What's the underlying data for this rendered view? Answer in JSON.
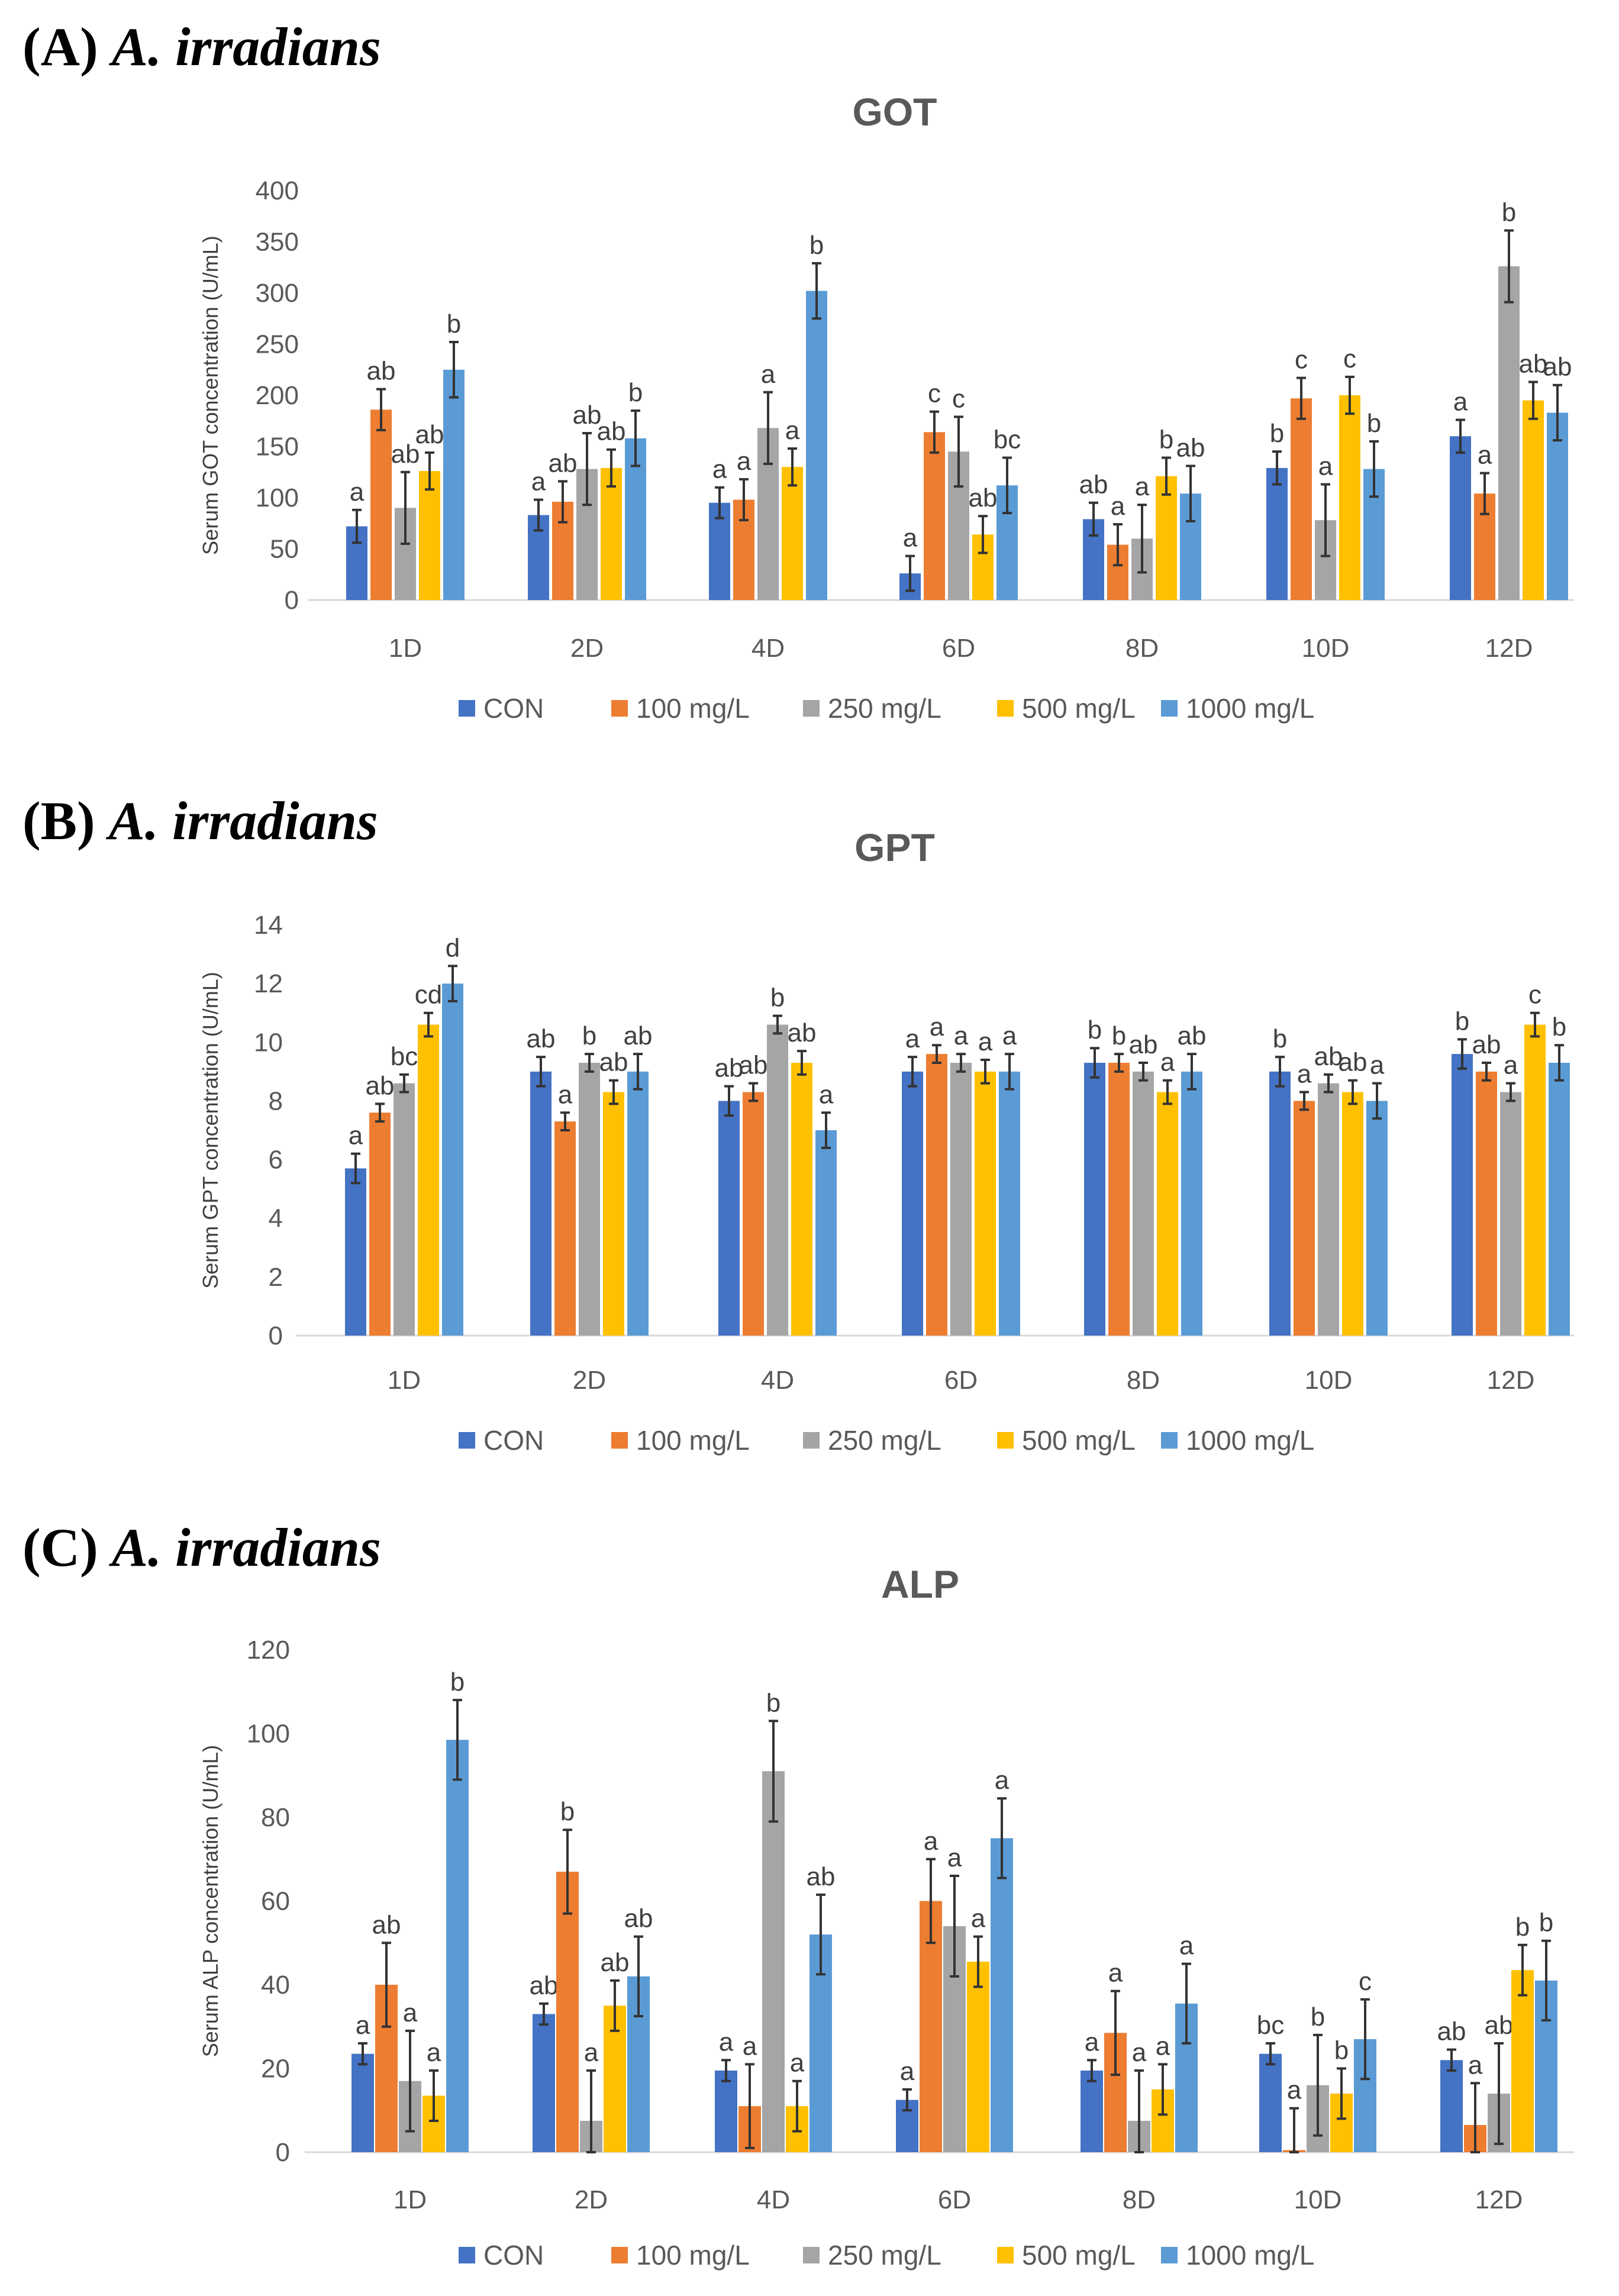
{
  "series_names": [
    "CON",
    "100 mg/L",
    "250 mg/L",
    "500 mg/L",
    "1000 mg/L"
  ],
  "series_colors": [
    "#4472C4",
    "#ED7D31",
    "#A5A5A5",
    "#FFC000",
    "#5B9BD5"
  ],
  "chart_data": [
    {
      "type": "bar",
      "panel_label": "(A)",
      "species": "A. irradians",
      "title": "GOT",
      "ylabel": "Serum GOT concentration (U/mL)",
      "xlabel": "",
      "ylim": [
        0,
        400
      ],
      "yticks": [
        0,
        50,
        100,
        150,
        200,
        250,
        300,
        350,
        400
      ],
      "categories": [
        "1D",
        "2D",
        "4D",
        "6D",
        "8D",
        "10D",
        "12D"
      ],
      "series": [
        {
          "name": "CON",
          "values": [
            72,
            83,
            95,
            26,
            79,
            129,
            160
          ],
          "errors": [
            16,
            15,
            15,
            17,
            16,
            16,
            16
          ],
          "labels": [
            "a",
            "a",
            "a",
            "a",
            "ab",
            "b",
            "a"
          ]
        },
        {
          "name": "100 mg/L",
          "values": [
            186,
            96,
            98,
            164,
            54,
            197,
            104
          ],
          "errors": [
            20,
            20,
            20,
            20,
            20,
            20,
            20
          ],
          "labels": [
            "ab",
            "ab",
            "a",
            "c",
            "a",
            "c",
            "a"
          ]
        },
        {
          "name": "250 mg/L",
          "values": [
            90,
            128,
            168,
            145,
            60,
            78,
            326
          ],
          "errors": [
            35,
            35,
            35,
            34,
            33,
            35,
            35
          ],
          "labels": [
            "ab",
            "ab",
            "a",
            "c",
            "a",
            "a",
            "b"
          ]
        },
        {
          "name": "500 mg/L",
          "values": [
            126,
            129,
            130,
            64,
            121,
            200,
            195
          ],
          "errors": [
            18,
            18,
            18,
            18,
            18,
            18,
            18
          ],
          "labels": [
            "ab",
            "ab",
            "a",
            "ab",
            "b",
            "c",
            "ab"
          ]
        },
        {
          "name": "1000 mg/L",
          "values": [
            225,
            158,
            302,
            112,
            104,
            128,
            183
          ],
          "errors": [
            27,
            27,
            27,
            27,
            27,
            27,
            27
          ],
          "labels": [
            "b",
            "b",
            "b",
            "bc",
            "ab",
            "b",
            "ab"
          ]
        }
      ],
      "legend": "bottom"
    },
    {
      "type": "bar",
      "panel_label": "(B)",
      "species": "A. irradians",
      "title": "GPT",
      "ylabel": "Serum GPT concentration (U/mL)",
      "xlabel": "",
      "ylim": [
        0,
        14
      ],
      "yticks": [
        0,
        2,
        4,
        6,
        8,
        10,
        12,
        14
      ],
      "categories": [
        "1D",
        "2D",
        "4D",
        "6D",
        "8D",
        "10D",
        "12D"
      ],
      "series": [
        {
          "name": "CON",
          "values": [
            5.7,
            9.0,
            8.0,
            9.0,
            9.3,
            9.0,
            9.6
          ],
          "errors": [
            0.5,
            0.5,
            0.5,
            0.5,
            0.5,
            0.5,
            0.5
          ],
          "labels": [
            "a",
            "ab",
            "ab",
            "a",
            "b",
            "b",
            "b"
          ]
        },
        {
          "name": "100 mg/L",
          "values": [
            7.6,
            7.3,
            8.3,
            9.6,
            9.3,
            8.0,
            9.0
          ],
          "errors": [
            0.3,
            0.3,
            0.3,
            0.3,
            0.3,
            0.3,
            0.3
          ],
          "labels": [
            "ab",
            "a",
            "ab",
            "a",
            "b",
            "a",
            "ab"
          ]
        },
        {
          "name": "250 mg/L",
          "values": [
            8.6,
            9.3,
            10.6,
            9.3,
            9.0,
            8.6,
            8.3
          ],
          "errors": [
            0.3,
            0.3,
            0.3,
            0.3,
            0.3,
            0.3,
            0.3
          ],
          "labels": [
            "bc",
            "b",
            "b",
            "a",
            "ab",
            "ab",
            "a"
          ]
        },
        {
          "name": "500 mg/L",
          "values": [
            10.6,
            8.3,
            9.3,
            9.0,
            8.3,
            8.3,
            10.6
          ],
          "errors": [
            0.4,
            0.4,
            0.4,
            0.4,
            0.4,
            0.4,
            0.4
          ],
          "labels": [
            "cd",
            "ab",
            "ab",
            "a",
            "a",
            "ab",
            "c"
          ]
        },
        {
          "name": "1000 mg/L",
          "values": [
            12.0,
            9.0,
            7.0,
            9.0,
            9.0,
            8.0,
            9.3
          ],
          "errors": [
            0.6,
            0.6,
            0.6,
            0.6,
            0.6,
            0.6,
            0.6
          ],
          "labels": [
            "d",
            "ab",
            "a",
            "a",
            "ab",
            "a",
            "b"
          ]
        }
      ],
      "legend": "bottom"
    },
    {
      "type": "bar",
      "panel_label": "(C)",
      "species": "A. irradians",
      "title": "ALP",
      "ylabel": "Serum ALP concentration (U/mL)",
      "xlabel": "",
      "ylim": [
        0,
        120
      ],
      "yticks": [
        0,
        20,
        40,
        60,
        80,
        100,
        120
      ],
      "categories": [
        "1D",
        "2D",
        "4D",
        "6D",
        "8D",
        "10D",
        "12D"
      ],
      "series": [
        {
          "name": "CON",
          "values": [
            23.5,
            33,
            19.5,
            12.5,
            19.5,
            23.5,
            22
          ],
          "errors": [
            2.5,
            2.5,
            2.5,
            2.5,
            2.5,
            2.5,
            2.5
          ],
          "labels": [
            "a",
            "ab",
            "a",
            "a",
            "a",
            "bc",
            "ab"
          ]
        },
        {
          "name": "100 mg/L",
          "values": [
            40,
            67,
            11,
            60,
            28.5,
            0.5,
            6.5
          ],
          "errors": [
            10,
            10,
            10,
            10,
            10,
            10,
            10
          ],
          "labels": [
            "ab",
            "b",
            "a",
            "a",
            "a",
            "a",
            "a"
          ]
        },
        {
          "name": "250 mg/L",
          "values": [
            17,
            7.5,
            91,
            54,
            7.5,
            16,
            14
          ],
          "errors": [
            12,
            12,
            12,
            12,
            12,
            12,
            12
          ],
          "labels": [
            "a",
            "a",
            "b",
            "a",
            "a",
            "b",
            "ab"
          ]
        },
        {
          "name": "500 mg/L",
          "values": [
            13.5,
            35,
            11,
            45.5,
            15,
            14,
            43.5
          ],
          "errors": [
            6,
            6,
            6,
            6,
            6,
            6,
            6
          ],
          "labels": [
            "a",
            "ab",
            "a",
            "a",
            "a",
            "b",
            "b"
          ]
        },
        {
          "name": "1000 mg/L",
          "values": [
            98.5,
            42,
            52,
            75,
            35.5,
            27,
            41
          ],
          "errors": [
            9.5,
            9.5,
            9.5,
            9.5,
            9.5,
            9.5,
            9.5
          ],
          "labels": [
            "b",
            "ab",
            "ab",
            "a",
            "a",
            "c",
            "b"
          ]
        }
      ],
      "legend": "bottom"
    }
  ]
}
